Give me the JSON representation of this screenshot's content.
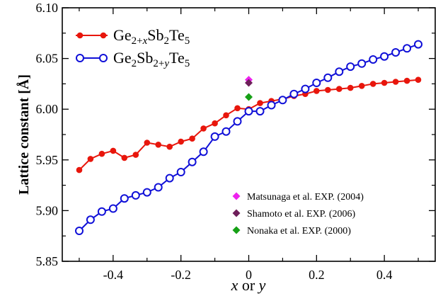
{
  "chart_data": {
    "type": "line",
    "title": "",
    "xlabel_parts": [
      {
        "text": "x",
        "italic": true
      },
      {
        "text": " or ",
        "italic": false
      },
      {
        "text": "y",
        "italic": true
      }
    ],
    "ylabel": "Lattice constant  [Å]",
    "xlim": [
      -0.55,
      0.55
    ],
    "ylim": [
      5.85,
      6.1
    ],
    "xticks": [
      -0.4,
      -0.2,
      0,
      0.2,
      0.4
    ],
    "xtick_labels": [
      "-0.4",
      "-0.2",
      "0",
      "0.2",
      "0.4"
    ],
    "yticks": [
      5.85,
      5.9,
      5.95,
      6.0,
      6.05,
      6.1
    ],
    "ytick_labels": [
      "5.85",
      "5.90",
      "5.95",
      "6.00",
      "6.05",
      "6.10"
    ],
    "grid": false,
    "legend_position": "top-left",
    "series": [
      {
        "legend_parts": [
          {
            "text": "Ge",
            "style": "normal"
          },
          {
            "text": "2+",
            "style": "sub"
          },
          {
            "text": "x",
            "style": "subitalic"
          },
          {
            "text": "Sb",
            "style": "normal"
          },
          {
            "text": "2",
            "style": "sub"
          },
          {
            "text": "Te",
            "style": "normal"
          },
          {
            "text": "5",
            "style": "sub"
          }
        ],
        "color": "#e8160c",
        "marker": "filled-circle",
        "x": [
          -0.5,
          -0.4667,
          -0.4333,
          -0.4,
          -0.3667,
          -0.3333,
          -0.3,
          -0.2667,
          -0.2333,
          -0.2,
          -0.1667,
          -0.1333,
          -0.1,
          -0.0667,
          -0.0333,
          0,
          0.0333,
          0.0667,
          0.1,
          0.1333,
          0.1667,
          0.2,
          0.2333,
          0.2667,
          0.3,
          0.3333,
          0.3667,
          0.4,
          0.4333,
          0.4667,
          0.5
        ],
        "y": [
          5.94,
          5.951,
          5.956,
          5.959,
          5.952,
          5.955,
          5.967,
          5.965,
          5.963,
          5.968,
          5.971,
          5.981,
          5.986,
          5.994,
          6.001,
          6.0,
          6.006,
          6.008,
          6.01,
          6.013,
          6.015,
          6.018,
          6.019,
          6.02,
          6.021,
          6.023,
          6.025,
          6.026,
          6.027,
          6.028,
          6.029
        ]
      },
      {
        "legend_parts": [
          {
            "text": "Ge",
            "style": "normal"
          },
          {
            "text": "2",
            "style": "sub"
          },
          {
            "text": "Sb",
            "style": "normal"
          },
          {
            "text": "2+",
            "style": "sub"
          },
          {
            "text": "y",
            "style": "subitalic"
          },
          {
            "text": "Te",
            "style": "normal"
          },
          {
            "text": "5",
            "style": "sub"
          }
        ],
        "color": "#1010d8",
        "marker": "open-circle",
        "x": [
          -0.5,
          -0.4667,
          -0.4333,
          -0.4,
          -0.3667,
          -0.3333,
          -0.3,
          -0.2667,
          -0.2333,
          -0.2,
          -0.1667,
          -0.1333,
          -0.1,
          -0.0667,
          -0.0333,
          0,
          0.0333,
          0.0667,
          0.1,
          0.1333,
          0.1667,
          0.2,
          0.2333,
          0.2667,
          0.3,
          0.3333,
          0.3667,
          0.4,
          0.4333,
          0.4667,
          0.5
        ],
        "y": [
          5.88,
          5.891,
          5.899,
          5.902,
          5.912,
          5.915,
          5.918,
          5.923,
          5.932,
          5.938,
          5.948,
          5.958,
          5.973,
          5.978,
          5.988,
          5.998,
          5.998,
          6.004,
          6.009,
          6.015,
          6.02,
          6.026,
          6.031,
          6.037,
          6.042,
          6.045,
          6.049,
          6.052,
          6.056,
          6.06,
          6.064
        ]
      }
    ],
    "experimental": [
      {
        "label": "Matsunaga et al. EXP. (2004)",
        "x": 0,
        "y": 6.029,
        "color": "#ee22ee"
      },
      {
        "label": "Shamoto et al. EXP. (2006)",
        "x": 0,
        "y": 6.026,
        "color": "#6e1e5a"
      },
      {
        "label": "Nonaka et al. EXP. (2000)",
        "x": 0,
        "y": 6.012,
        "color": "#16a016"
      }
    ]
  }
}
